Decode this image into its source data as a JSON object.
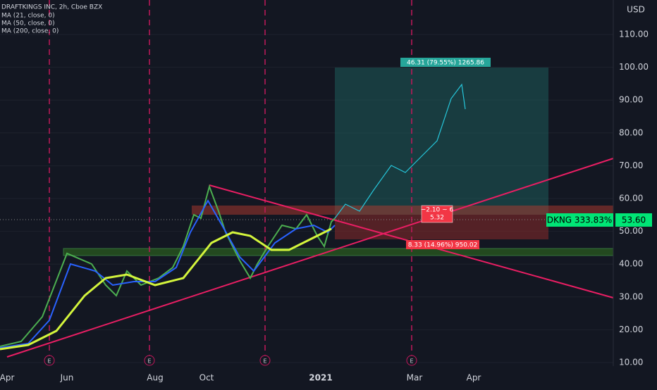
{
  "header": {
    "symbol": "DRAFTKINGS INC, 2h, Cboe BZX",
    "indicators": [
      "MA (21, close, 0)",
      "MA (50, close, 0)",
      "MA (200, close, 0)"
    ],
    "currency": "USD"
  },
  "price_axis": {
    "ticks": [
      {
        "value": 110,
        "label": "110.00"
      },
      {
        "value": 100,
        "label": "100.00"
      },
      {
        "value": 90,
        "label": "90.00"
      },
      {
        "value": 80,
        "label": "80.00"
      },
      {
        "value": 70,
        "label": "70.00"
      },
      {
        "value": 60,
        "label": "60.00"
      },
      {
        "value": 50,
        "label": "50.00"
      },
      {
        "value": 40,
        "label": "40.00"
      },
      {
        "value": 30,
        "label": "30.00"
      },
      {
        "value": 20,
        "label": "20.00"
      },
      {
        "value": 10,
        "label": "10.00"
      }
    ],
    "last_price": {
      "value": 53.6,
      "label": "53.60"
    },
    "symbol_tag": "DKNG 333.83%"
  },
  "time_axis": [
    "Apr",
    "Jun",
    "Aug",
    "Oct",
    "2021",
    "Mar",
    "Apr"
  ],
  "earnings_marker": "E",
  "position": {
    "target": "46.31 (79.55%) 1265.86",
    "range": "−2.10 ~ 6",
    "range_value": "5.32",
    "stop": "8.33 (14.96%) 950.02"
  }
}
